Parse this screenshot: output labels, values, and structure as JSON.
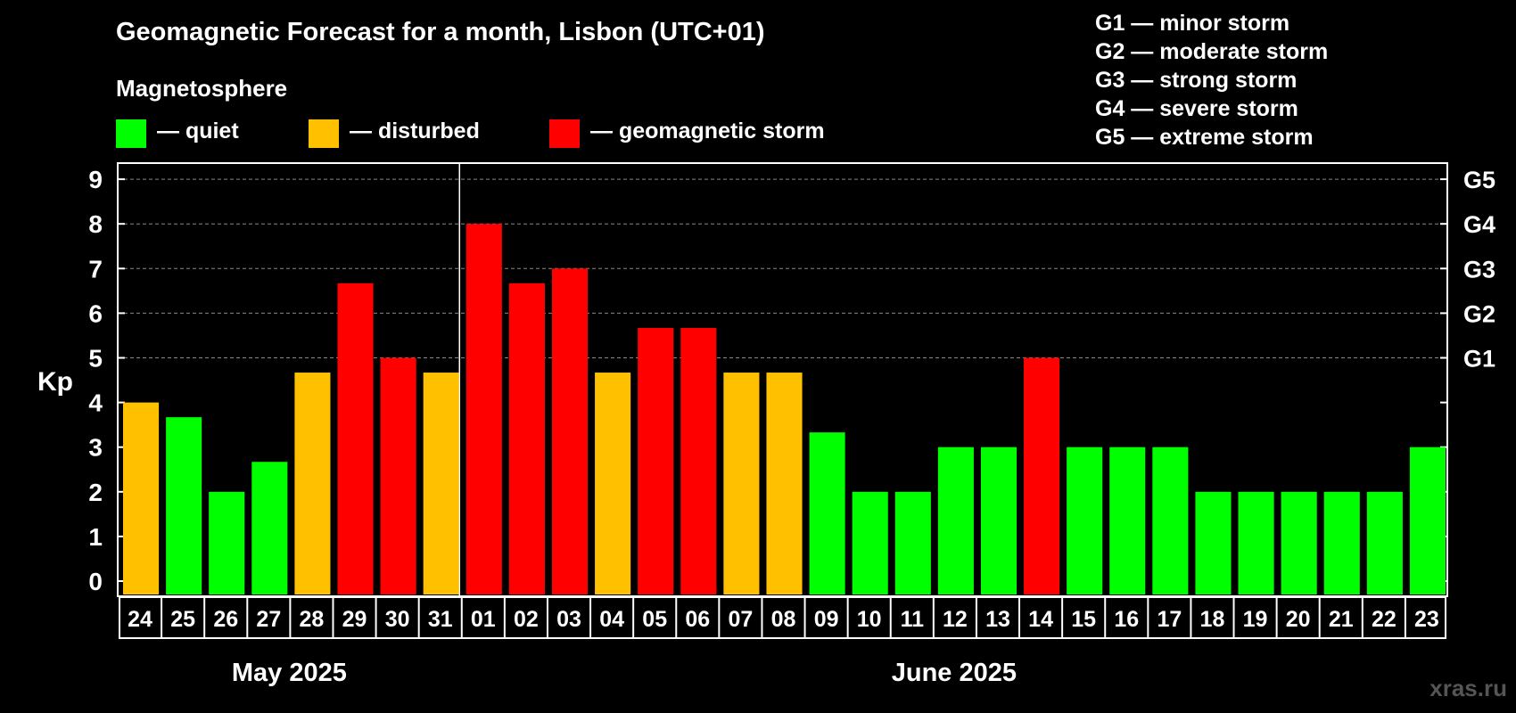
{
  "title": "Geomagnetic Forecast for a month, Lisbon (UTC+01)",
  "legend": {
    "heading": "Magnetosphere",
    "items": [
      {
        "label": "— quiet",
        "color": "#00ff00"
      },
      {
        "label": "— disturbed",
        "color": "#ffc000"
      },
      {
        "label": "— geomagnetic storm",
        "color": "#ff0000"
      }
    ]
  },
  "g_scale": [
    "G1 — minor storm",
    "G2 — moderate storm",
    "G3 — strong storm",
    "G4 — severe storm",
    "G5 — extreme storm"
  ],
  "watermark": "xras.ru",
  "chart_data": {
    "type": "bar",
    "ylabel": "Kp",
    "ylim": [
      0,
      9
    ],
    "yticks": [
      0,
      1,
      2,
      3,
      4,
      5,
      6,
      7,
      8,
      9
    ],
    "right_axis_labels": [
      {
        "kp": 5,
        "label": "G1"
      },
      {
        "kp": 6,
        "label": "G2"
      },
      {
        "kp": 7,
        "label": "G3"
      },
      {
        "kp": 8,
        "label": "G4"
      },
      {
        "kp": 9,
        "label": "G5"
      }
    ],
    "grid": "dashed horizontal at Kp 5-9",
    "categories": [
      "24",
      "25",
      "26",
      "27",
      "28",
      "29",
      "30",
      "31",
      "01",
      "02",
      "03",
      "04",
      "05",
      "06",
      "07",
      "08",
      "09",
      "10",
      "11",
      "12",
      "13",
      "14",
      "15",
      "16",
      "17",
      "18",
      "19",
      "20",
      "21",
      "22",
      "23"
    ],
    "values": [
      4,
      3.67,
      2,
      2.67,
      4.67,
      6.67,
      5,
      4.67,
      8,
      6.67,
      7,
      4.67,
      5.67,
      5.67,
      4.67,
      4.67,
      3.33,
      2,
      2,
      3,
      3,
      5,
      3,
      3,
      3,
      2,
      2,
      2,
      2,
      2,
      3
    ],
    "levels": [
      "disturbed",
      "quiet",
      "quiet",
      "quiet",
      "disturbed",
      "storm",
      "storm",
      "disturbed",
      "storm",
      "storm",
      "storm",
      "disturbed",
      "storm",
      "storm",
      "disturbed",
      "disturbed",
      "quiet",
      "quiet",
      "quiet",
      "quiet",
      "quiet",
      "storm",
      "quiet",
      "quiet",
      "quiet",
      "quiet",
      "quiet",
      "quiet",
      "quiet",
      "quiet",
      "quiet"
    ],
    "level_colors": {
      "quiet": "#00ff00",
      "disturbed": "#ffc000",
      "storm": "#ff0000"
    },
    "months": [
      {
        "label": "May 2025",
        "first_index": 0,
        "count": 8
      },
      {
        "label": "June 2025",
        "first_index": 8,
        "count": 23
      }
    ]
  }
}
